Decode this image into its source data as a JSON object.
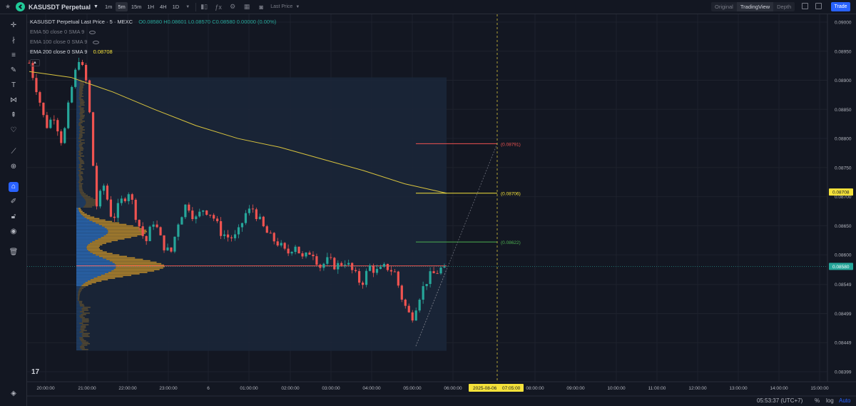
{
  "toolbar": {
    "symbol": "KASUSDT Perpetual",
    "timeframes": [
      "1m",
      "5m",
      "15m",
      "1H",
      "4H",
      "1D"
    ],
    "active_timeframe": "5m",
    "price_type": "Last Price",
    "views": [
      "Original",
      "TradingView",
      "Depth"
    ],
    "active_view": "TradingView",
    "trade_label": "Trade"
  },
  "legend": {
    "title": "KASUSDT Perpetual Last Price · 5 · MEXC",
    "ohlc": "O0.08580 H0.08601 L0.08570 C0.08580 0.00000 (0.00%)",
    "ema50": "EMA 50 close 0 SMA 9",
    "ema100": "EMA 100 close 0 SMA 9",
    "ema200": "EMA 200 close 0 SMA 9",
    "ema200_value": "0.08708"
  },
  "bottom": {
    "clock": "05:53:37 (UTC+7)",
    "percent": "%",
    "log": "log",
    "auto": "Auto"
  },
  "colors": {
    "up": "#26a69a",
    "down": "#ef5350",
    "ema200": "#d8c33e",
    "vp_up": "#2e72c4",
    "vp_down": "#c8922a",
    "background": "#131722"
  },
  "chart_data": {
    "type": "candlestick",
    "title": "KASUSDT Perpetual Last Price · 5 · MEXC",
    "y_ticks": [
      "0.09000",
      "0.08950",
      "0.08900",
      "0.08850",
      "0.08800",
      "0.08750",
      "0.08700",
      "0.08650",
      "0.08600",
      "0.08549",
      "0.08499",
      "0.08449",
      "0.08399"
    ],
    "ylim": [
      0.08375,
      0.0902
    ],
    "x_ticks": [
      "20:00:00",
      "21:00:00",
      "22:00:00",
      "23:00:00",
      "6",
      "01:00:00",
      "02:00:00",
      "03:00:00",
      "04:00:00",
      "05:00:00",
      "06:00:00",
      "08:00:00",
      "09:00:00",
      "10:00:00",
      "11:00:00",
      "12:00:00",
      "13:00:00",
      "14:00:00",
      "15:00:00"
    ],
    "crosshair_time_label": "2025-08-06    07:05:00",
    "crosshair_date": "2025-08-06",
    "crosshair_time": "07:05:00",
    "price_labels": [
      {
        "text": "0.08708",
        "value": 0.08708,
        "kind": "ema200"
      },
      {
        "text": "0.08580",
        "value": 0.0858,
        "kind": "last"
      }
    ],
    "projection_levels": [
      {
        "label": "(0.08791)",
        "value": 0.08791,
        "color": "#ef5350"
      },
      {
        "label": "(0.08706)",
        "value": 0.08706,
        "color": "#f5e23a"
      },
      {
        "label": "(0.08622)",
        "value": 0.08622,
        "color": "#4caf50"
      }
    ],
    "last_price": 0.0858,
    "ema200_value": 0.08708,
    "price_path": [
      [
        0,
        0.0893
      ],
      [
        0.02,
        0.0888
      ],
      [
        0.04,
        0.0882
      ],
      [
        0.06,
        0.0884
      ],
      [
        0.08,
        0.0879
      ],
      [
        0.1,
        0.0888
      ],
      [
        0.12,
        0.0894
      ],
      [
        0.14,
        0.0889
      ],
      [
        0.15,
        0.088
      ],
      [
        0.16,
        0.0868
      ],
      [
        0.18,
        0.0872
      ],
      [
        0.2,
        0.0866
      ],
      [
        0.22,
        0.0869
      ],
      [
        0.24,
        0.0871
      ],
      [
        0.26,
        0.0866
      ],
      [
        0.28,
        0.0862
      ],
      [
        0.3,
        0.0866
      ],
      [
        0.32,
        0.0862
      ],
      [
        0.34,
        0.086
      ],
      [
        0.36,
        0.0866
      ],
      [
        0.38,
        0.0869
      ],
      [
        0.4,
        0.0866
      ],
      [
        0.42,
        0.0868
      ],
      [
        0.44,
        0.0867
      ],
      [
        0.46,
        0.0864
      ],
      [
        0.48,
        0.0863
      ],
      [
        0.5,
        0.0863
      ],
      [
        0.52,
        0.0867
      ],
      [
        0.54,
        0.0868
      ],
      [
        0.56,
        0.0865
      ],
      [
        0.58,
        0.0863
      ],
      [
        0.6,
        0.0862
      ],
      [
        0.62,
        0.086
      ],
      [
        0.64,
        0.0862
      ],
      [
        0.66,
        0.0859
      ],
      [
        0.68,
        0.0861
      ],
      [
        0.7,
        0.0858
      ],
      [
        0.72,
        0.0859
      ],
      [
        0.74,
        0.0858
      ],
      [
        0.76,
        0.0859
      ],
      [
        0.78,
        0.0857
      ],
      [
        0.8,
        0.0855
      ],
      [
        0.82,
        0.0858
      ],
      [
        0.84,
        0.0857
      ],
      [
        0.86,
        0.0858
      ],
      [
        0.88,
        0.0857
      ],
      [
        0.9,
        0.0852
      ],
      [
        0.92,
        0.0849
      ],
      [
        0.94,
        0.0853
      ],
      [
        0.96,
        0.0856
      ],
      [
        0.98,
        0.0857
      ],
      [
        1,
        0.0858
      ]
    ],
    "ema200_path": [
      [
        0,
        0.08915
      ],
      [
        0.1,
        0.08905
      ],
      [
        0.2,
        0.0888
      ],
      [
        0.3,
        0.0885
      ],
      [
        0.4,
        0.08822
      ],
      [
        0.5,
        0.088
      ],
      [
        0.6,
        0.08785
      ],
      [
        0.7,
        0.08765
      ],
      [
        0.8,
        0.08745
      ],
      [
        0.9,
        0.08722
      ],
      [
        1,
        0.08706
      ]
    ]
  }
}
